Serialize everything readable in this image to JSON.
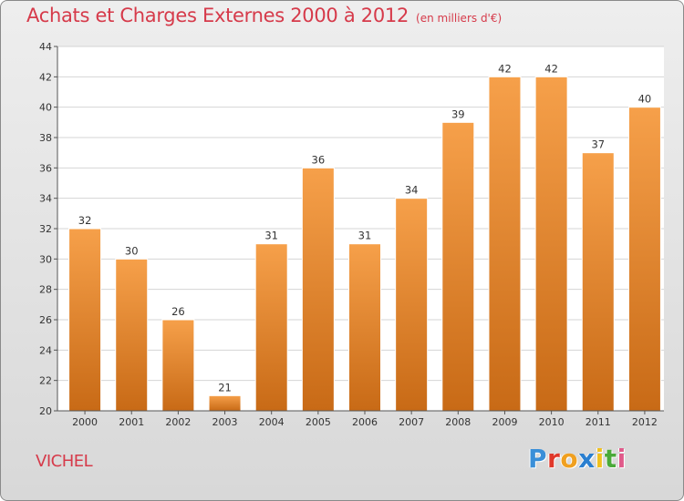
{
  "header": {
    "title": "Achats et Charges Externes 2000 à 2012",
    "subtitle": "(en milliers d'€)"
  },
  "footer": {
    "commune": "VICHEL",
    "logo_text": "Proxiti",
    "logo_letters": [
      {
        "ch": "P",
        "color": "#3a8fd8"
      },
      {
        "ch": "r",
        "color": "#e0382a"
      },
      {
        "ch": "o",
        "color": "#f0a020"
      },
      {
        "ch": "x",
        "color": "#2a7fd0"
      },
      {
        "ch": "i",
        "color": "#f0c020"
      },
      {
        "ch": "t",
        "color": "#4aaa3a"
      },
      {
        "ch": "i",
        "color": "#e05a8a"
      }
    ]
  },
  "chart_data": {
    "type": "bar",
    "title": "Achats et Charges Externes 2000 à 2012",
    "subtitle": "(en milliers d'€)",
    "categories": [
      "2000",
      "2001",
      "2002",
      "2003",
      "2004",
      "2005",
      "2006",
      "2007",
      "2008",
      "2009",
      "2010",
      "2011",
      "2012"
    ],
    "values": [
      32,
      30,
      26,
      21,
      31,
      36,
      31,
      34,
      39,
      42,
      42,
      37,
      40
    ],
    "ylim": [
      20,
      44
    ],
    "yticks": [
      20,
      22,
      24,
      26,
      28,
      30,
      32,
      34,
      36,
      38,
      40,
      42,
      44
    ],
    "grid": "horizontal",
    "bar_color_top": "#f6a04a",
    "bar_color_bottom": "#c86a16",
    "xlabel": "",
    "ylabel": ""
  }
}
